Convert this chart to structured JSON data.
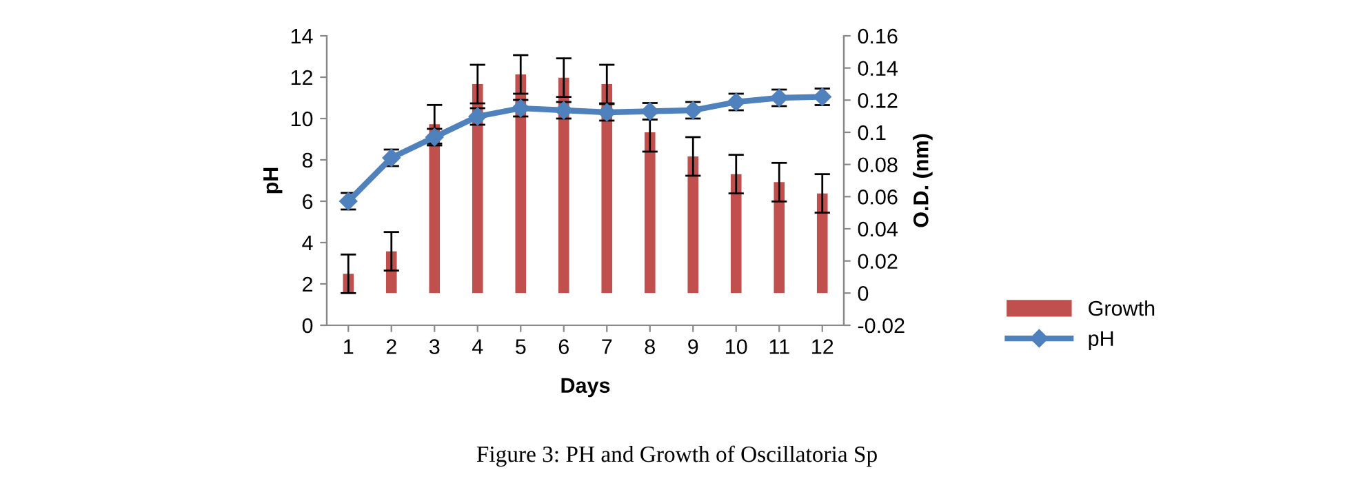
{
  "chart_data": {
    "type": "bar",
    "xlabel": "Days",
    "ylabel": "pH",
    "y2label": "O.D. (nm)",
    "categories": [
      "1",
      "2",
      "3",
      "4",
      "5",
      "6",
      "7",
      "8",
      "9",
      "10",
      "11",
      "12"
    ],
    "series": [
      {
        "name": "Growth",
        "axis": "y2",
        "color": "#c0504d",
        "values": [
          0.012,
          0.026,
          0.105,
          0.13,
          0.136,
          0.134,
          0.13,
          0.1,
          0.085,
          0.074,
          0.069,
          0.062
        ],
        "errors": [
          0.012,
          0.012,
          0.012,
          0.012,
          0.012,
          0.012,
          0.012,
          0.012,
          0.012,
          0.012,
          0.012,
          0.012
        ]
      },
      {
        "name": "pH",
        "type": "line",
        "color": "#4f81bd",
        "marker": "diamond",
        "values": [
          6.0,
          8.1,
          9.1,
          10.1,
          10.5,
          10.4,
          10.3,
          10.35,
          10.4,
          10.8,
          11.0,
          11.05
        ],
        "errors": [
          0.4,
          0.4,
          0.4,
          0.4,
          0.4,
          0.4,
          0.4,
          0.4,
          0.4,
          0.4,
          0.4,
          0.4
        ]
      }
    ],
    "ylim": [
      0,
      14
    ],
    "yticks": [
      0,
      2,
      4,
      6,
      8,
      10,
      12,
      14
    ],
    "y2lim": [
      -0.02,
      0.16
    ],
    "y2ticks": [
      {
        "value": -0.02,
        "label": "-0.02"
      },
      {
        "value": 0,
        "label": "0"
      },
      {
        "value": 0.02,
        "label": "0.02"
      },
      {
        "value": 0.04,
        "label": "0.04"
      },
      {
        "value": 0.06,
        "label": "0.06"
      },
      {
        "value": 0.08,
        "label": "0.08"
      },
      {
        "value": 0.1,
        "label": "0.1"
      },
      {
        "value": 0.12,
        "label": "0.12"
      },
      {
        "value": 0.14,
        "label": "0.14"
      },
      {
        "value": 0.16,
        "label": "0.16"
      }
    ],
    "legend": "right",
    "grid": false,
    "annotations": [
      "Figure 3: PH and Growth of Oscillatoria Sp"
    ]
  }
}
